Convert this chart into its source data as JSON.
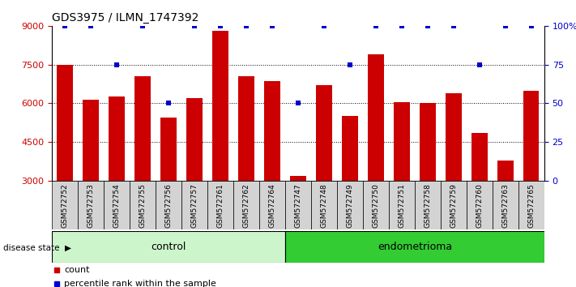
{
  "title": "GDS3975 / ILMN_1747392",
  "samples": [
    "GSM572752",
    "GSM572753",
    "GSM572754",
    "GSM572755",
    "GSM572756",
    "GSM572757",
    "GSM572761",
    "GSM572762",
    "GSM572764",
    "GSM572747",
    "GSM572748",
    "GSM572749",
    "GSM572750",
    "GSM572751",
    "GSM572758",
    "GSM572759",
    "GSM572760",
    "GSM572763",
    "GSM572765"
  ],
  "counts": [
    7480,
    6150,
    6250,
    7050,
    5450,
    6200,
    8800,
    7050,
    6850,
    3200,
    6700,
    5500,
    7900,
    6050,
    6000,
    6400,
    4850,
    3800,
    6500
  ],
  "percentiles": [
    100,
    100,
    75,
    100,
    50,
    100,
    100,
    100,
    100,
    50,
    100,
    75,
    100,
    100,
    100,
    100,
    75,
    100,
    100
  ],
  "control_count": 9,
  "bar_color": "#cc0000",
  "percentile_color": "#0000cc",
  "ylim_left": [
    3000,
    9000
  ],
  "yticks_left": [
    3000,
    4500,
    6000,
    7500,
    9000
  ],
  "yticks_right": [
    0,
    25,
    50,
    75,
    100
  ],
  "yticks_right_labels": [
    "0",
    "25",
    "50",
    "75",
    "100%"
  ],
  "grid_values": [
    4500,
    6000,
    7500
  ],
  "control_label": "control",
  "endometrioma_label": "endometrioma",
  "disease_state_label": "disease state",
  "legend_count_label": "count",
  "legend_percentile_label": "percentile rank within the sample",
  "tick_bg": "#d3d3d3",
  "control_bg": "#ccf5cc",
  "endometrioma_bg": "#33cc33"
}
